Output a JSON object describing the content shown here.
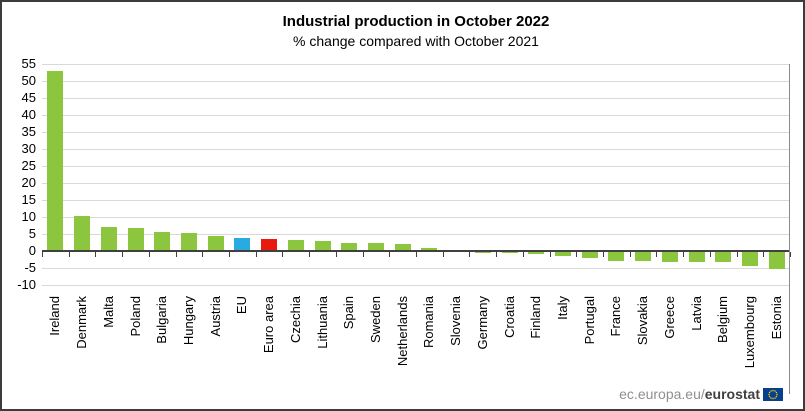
{
  "chart_data": {
    "type": "bar",
    "title": "Industrial production in October 2022",
    "subtitle": "% change compared with October 2021",
    "xlabel": "",
    "ylabel": "",
    "unit": "%",
    "ylim": [
      -10,
      55
    ],
    "ytick_step": 5,
    "yticks": [
      55,
      50,
      45,
      40,
      35,
      30,
      25,
      20,
      15,
      10,
      5,
      0,
      -5,
      -10
    ],
    "grid": true,
    "legend": "none",
    "categories": [
      "Ireland",
      "Denmark",
      "Malta",
      "Poland",
      "Bulgaria",
      "Hungary",
      "Austria",
      "EU",
      "Euro area",
      "Czechia",
      "Lithuania",
      "Spain",
      "Sweden",
      "Netherlands",
      "Romania",
      "Slovenia",
      "Germany",
      "Croatia",
      "Finland",
      "Italy",
      "Portugal",
      "France",
      "Slovakia",
      "Greece",
      "Latvia",
      "Belgium",
      "Luxembourg",
      "Estonia"
    ],
    "values": [
      52.9,
      10.4,
      7.2,
      6.9,
      5.7,
      5.3,
      4.5,
      3.9,
      3.4,
      3.1,
      2.8,
      2.5,
      2.3,
      2.0,
      1.0,
      0.2,
      -0.1,
      -0.3,
      -0.5,
      -1.1,
      -1.9,
      -2.6,
      -2.6,
      -2.9,
      -2.9,
      -2.9,
      -4.2,
      -5.1
    ],
    "bar_colors": {
      "default": "#8cc63e",
      "EU": "#29abe2",
      "Euro area": "#e8190f"
    },
    "axis_color": "#404040",
    "gridline_color": "#d9d9d9"
  },
  "footer": {
    "url_prefix": "ec.europa.eu/",
    "url_bold": "eurostat",
    "flag_icon": "eu-flag-icon",
    "flag_blue": "#07418c",
    "flag_star_yellow": "#ffcc00"
  }
}
